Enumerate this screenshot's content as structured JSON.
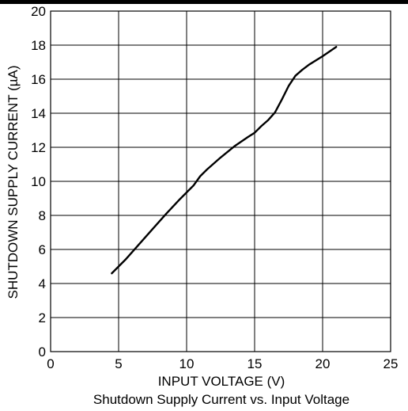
{
  "chart_data": {
    "type": "line",
    "title": "Shutdown Supply Current vs. Input Voltage",
    "xlabel": "INPUT VOLTAGE (V)",
    "ylabel": "SHUTDOWN SUPPLY CURRENT (µA)",
    "xlim": [
      0,
      25
    ],
    "ylim": [
      0,
      20
    ],
    "xticks": [
      0,
      5,
      10,
      15,
      20,
      25
    ],
    "yticks": [
      0,
      2,
      4,
      6,
      8,
      10,
      12,
      14,
      16,
      18,
      20
    ],
    "grid": true,
    "series": [
      {
        "x": [
          4.5,
          5.5,
          6.5,
          7.5,
          8.5,
          9.5,
          10.5,
          11,
          11.5,
          12.5,
          13.5,
          14.5,
          15,
          15.5,
          16,
          16.5,
          17,
          17.5,
          18,
          18.5,
          19,
          20,
          21
        ],
        "y": [
          4.6,
          5.4,
          6.3,
          7.2,
          8.1,
          8.95,
          9.75,
          10.3,
          10.7,
          11.4,
          12.05,
          12.6,
          12.85,
          13.25,
          13.6,
          14.05,
          14.8,
          15.6,
          16.2,
          16.55,
          16.85,
          17.35,
          17.9
        ],
        "color": "#000000"
      }
    ]
  }
}
